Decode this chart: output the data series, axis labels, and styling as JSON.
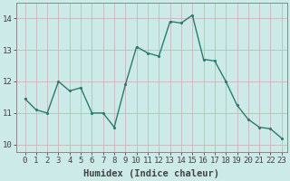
{
  "x": [
    0,
    1,
    2,
    3,
    4,
    5,
    6,
    7,
    8,
    9,
    10,
    11,
    12,
    13,
    14,
    15,
    16,
    17,
    18,
    19,
    20,
    21,
    22,
    23
  ],
  "y": [
    11.45,
    11.1,
    11.0,
    12.0,
    11.7,
    11.8,
    11.0,
    11.0,
    10.55,
    11.9,
    13.1,
    12.9,
    12.8,
    13.9,
    13.85,
    14.1,
    12.7,
    12.65,
    12.0,
    11.25,
    10.8,
    10.55,
    10.5,
    10.2
  ],
  "line_color": "#2d7a6e",
  "marker_color": "#2d7a6e",
  "bg_color": "#cceae7",
  "grid_color": "#c8b8b8",
  "xlabel": "Humidex (Indice chaleur)",
  "xlabel_fontsize": 7.5,
  "tick_fontsize": 6.5,
  "ytick_labels": [
    "10",
    "11",
    "12",
    "13",
    "14"
  ],
  "yticks": [
    10,
    11,
    12,
    13,
    14
  ],
  "ylim": [
    9.75,
    14.5
  ],
  "xlim": [
    -0.8,
    23.5
  ],
  "xtick_labels": [
    "0",
    "1",
    "2",
    "3",
    "4",
    "5",
    "6",
    "7",
    "8",
    "9",
    "10",
    "11",
    "12",
    "13",
    "14",
    "15",
    "16",
    "17",
    "18",
    "19",
    "20",
    "21",
    "22",
    "23"
  ],
  "axis_color": "#444444",
  "linewidth": 1.0,
  "markersize": 2.5
}
